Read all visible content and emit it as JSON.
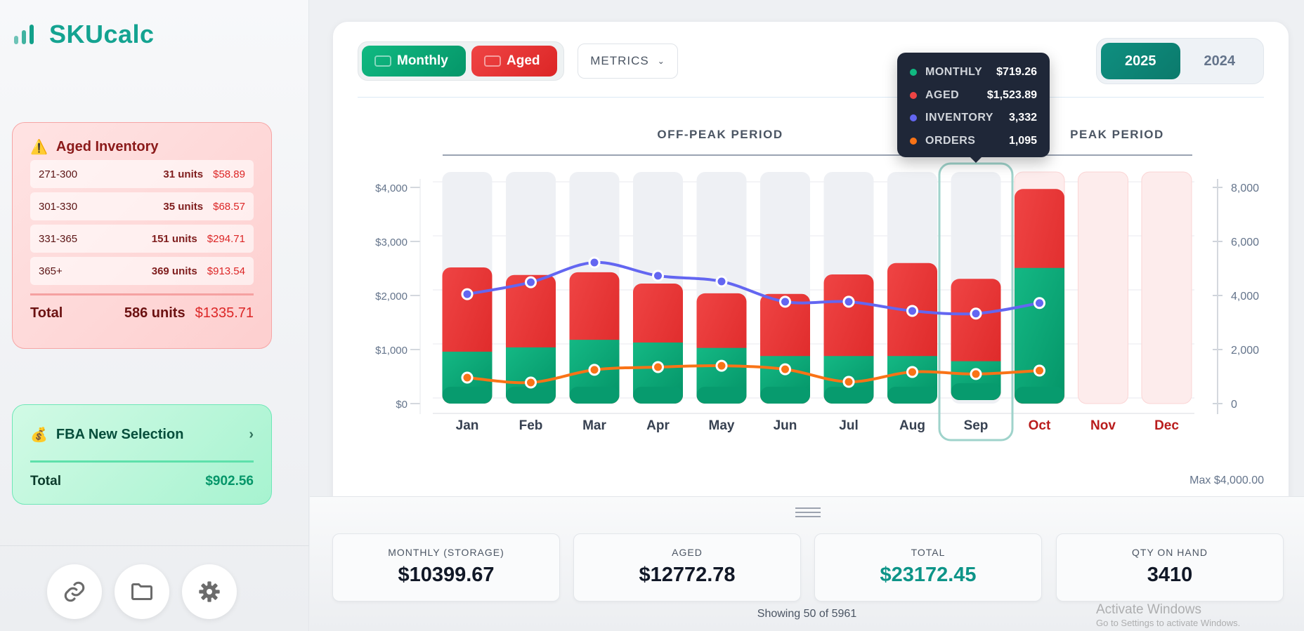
{
  "app": {
    "title": "SKUcalc"
  },
  "aged_inventory": {
    "title": "Aged Inventory",
    "icon": "warning-icon",
    "rows": [
      {
        "range": "271-300",
        "units": "31 units",
        "amount": "$58.89"
      },
      {
        "range": "301-330",
        "units": "35 units",
        "amount": "$68.57"
      },
      {
        "range": "331-365",
        "units": "151 units",
        "amount": "$294.71"
      },
      {
        "range": "365+",
        "units": "369 units",
        "amount": "$913.54"
      }
    ],
    "total_label": "Total",
    "total_units": "586 units",
    "total_amount": "$1335.71"
  },
  "fba": {
    "title": "FBA New Selection",
    "icon": "money-bag-icon",
    "total_label": "Total",
    "total_amount": "$902.56"
  },
  "sidebar_buttons": [
    "link-icon",
    "folder-icon",
    "gear-icon"
  ],
  "toolbar": {
    "monthly_label": "Monthly",
    "aged_label": "Aged",
    "metrics_label": "METRICS",
    "years": [
      "2025",
      "2024"
    ],
    "selected_year": "2025"
  },
  "periods": {
    "off_peak": "OFF-PEAK PERIOD",
    "peak": "PEAK PERIOD"
  },
  "tooltip": {
    "month": "Sep",
    "rows": [
      {
        "label": "MONTHLY",
        "value": "$719.26",
        "color": "#10b981"
      },
      {
        "label": "AGED",
        "value": "$1,523.89",
        "color": "#ef4444"
      },
      {
        "label": "INVENTORY",
        "value": "3,332",
        "color": "#6366f1"
      },
      {
        "label": "ORDERS",
        "value": "1,095",
        "color": "#f97316"
      }
    ]
  },
  "max_label": "Max $4,000.00",
  "chart_data": {
    "type": "bar",
    "stacked": true,
    "categories": [
      "Jan",
      "Feb",
      "Mar",
      "Apr",
      "May",
      "Jun",
      "Jul",
      "Aug",
      "Sep",
      "Oct",
      "Nov",
      "Dec"
    ],
    "peak_categories": [
      "Oct",
      "Nov",
      "Dec"
    ],
    "highlighted": "Sep",
    "series": [
      {
        "name": "Monthly",
        "type": "bar",
        "axis": "left",
        "color": "#10b981",
        "values": [
          960,
          1040,
          1180,
          1130,
          1030,
          880,
          880,
          880,
          719.26,
          2510,
          null,
          null
        ]
      },
      {
        "name": "Aged",
        "type": "bar",
        "axis": "left",
        "color": "#ef4444",
        "values": [
          1560,
          1340,
          1250,
          1090,
          1010,
          1150,
          1510,
          1720,
          1523.89,
          1460,
          null,
          null
        ]
      },
      {
        "name": "Inventory",
        "type": "line",
        "axis": "right",
        "color": "#6366f1",
        "values": [
          4050,
          4490,
          5220,
          4730,
          4520,
          3770,
          3770,
          3430,
          3332,
          3720,
          null,
          null
        ]
      },
      {
        "name": "Orders",
        "type": "line",
        "axis": "right",
        "color": "#f97316",
        "values": [
          960,
          780,
          1250,
          1350,
          1400,
          1270,
          805,
          1170,
          1095,
          1220,
          null,
          null
        ]
      }
    ],
    "y_left": {
      "min": 0,
      "max": 4000,
      "ticks": [
        "$0",
        "$1,000",
        "$2,000",
        "$3,000",
        "$4,000"
      ]
    },
    "y_right": {
      "min": 0,
      "max": 8000,
      "ticks": [
        "0",
        "2,000",
        "4,000",
        "6,000",
        "8,000"
      ]
    },
    "grid": true
  },
  "stats": [
    {
      "label": "MONTHLY (STORAGE)",
      "value": "$10399.67"
    },
    {
      "label": "AGED",
      "value": "$12772.78"
    },
    {
      "label": "TOTAL",
      "value": "$23172.45"
    },
    {
      "label": "QTY ON HAND",
      "value": "3410"
    }
  ],
  "showing": "Showing 50 of 5961",
  "watermark": {
    "line1": "Activate Windows",
    "line2": "Go to Settings to activate Windows."
  }
}
